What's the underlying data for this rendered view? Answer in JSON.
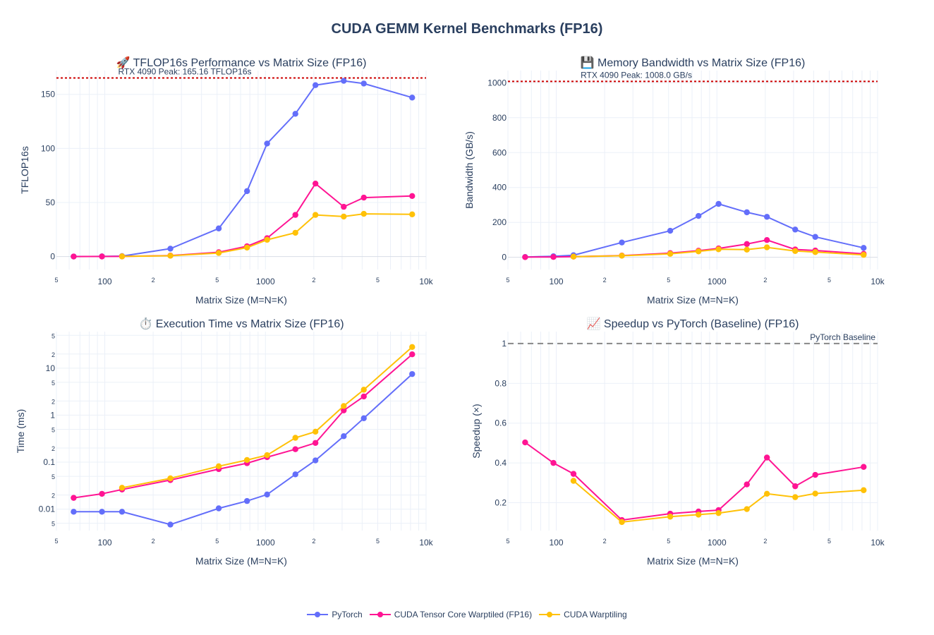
{
  "page_title": "CUDA GEMM Kernel Benchmarks (FP16)",
  "colors": {
    "pytorch": "#636efa",
    "tensor_core": "#ff1493",
    "warptiling": "#ffc107",
    "reference_line": "#cc0000",
    "baseline_line": "#888888",
    "text": "#2a3f5f",
    "grid": "#ebf0f8"
  },
  "legend": [
    {
      "name": "PyTorch",
      "color": "#636efa"
    },
    {
      "name": "CUDA Tensor Core Warptiled (FP16)",
      "color": "#ff1493"
    },
    {
      "name": "CUDA Warptiling",
      "color": "#ffc107"
    }
  ],
  "chart_data": [
    {
      "type": "line",
      "title": "🚀 TFLOP16s Performance vs Matrix Size (FP16)",
      "xlabel": "Matrix Size (M=N=K)",
      "ylabel": "TFLOP16s",
      "xscale": "log",
      "xlim": [
        50,
        10000
      ],
      "ylim": [
        -12,
        172
      ],
      "yticks": [
        0,
        50,
        100,
        150
      ],
      "reference": {
        "value": 165.16,
        "label": "RTX 4090 Peak: 165.16 TFLOP16s"
      },
      "series": [
        {
          "name": "PyTorch",
          "x": [
            64,
            96,
            128,
            256,
            512,
            768,
            1024,
            1536,
            2048,
            3072,
            4096,
            8192
          ],
          "values": [
            0.05,
            0.15,
            0.4,
            7.3,
            26,
            60.5,
            104.5,
            132,
            158.5,
            162.5,
            160,
            147
          ]
        },
        {
          "name": "CUDA Tensor Core Warptiled (FP16)",
          "x": [
            64,
            96,
            128,
            256,
            512,
            768,
            1024,
            1536,
            2048,
            3072,
            4096,
            8192
          ],
          "values": [
            0.03,
            0.07,
            0.15,
            0.9,
            4,
            9.5,
            17,
            38.5,
            67.5,
            46,
            54.5,
            56
          ]
        },
        {
          "name": "CUDA Warptiling",
          "x": [
            128,
            256,
            512,
            768,
            1024,
            1536,
            2048,
            3072,
            4096,
            8192
          ],
          "values": [
            0.15,
            0.75,
            3.3,
            8.3,
            15.5,
            22,
            38.5,
            37,
            39.5,
            39
          ]
        }
      ]
    },
    {
      "type": "line",
      "title": "💾 Memory Bandwidth vs Matrix Size (FP16)",
      "xlabel": "Matrix Size (M=N=K)",
      "ylabel": "Bandwidth (GB/s)",
      "xscale": "log",
      "xlim": [
        50,
        10000
      ],
      "ylim": [
        -70,
        1070
      ],
      "yticks": [
        0,
        200,
        400,
        600,
        800,
        1000
      ],
      "reference": {
        "value": 1008.0,
        "label": "RTX 4090 Peak: 1008.0 GB/s"
      },
      "series": [
        {
          "name": "PyTorch",
          "x": [
            64,
            96,
            128,
            256,
            512,
            768,
            1024,
            1536,
            2048,
            3072,
            4096,
            8192
          ],
          "values": [
            2,
            6,
            12,
            85,
            152,
            237,
            306,
            258,
            232,
            159,
            117,
            54
          ]
        },
        {
          "name": "CUDA Tensor Core Warptiled (FP16)",
          "x": [
            64,
            96,
            128,
            256,
            512,
            768,
            1024,
            1536,
            2048,
            3072,
            4096,
            8192
          ],
          "values": [
            1,
            2,
            4,
            10,
            24,
            38,
            51,
            76,
            99,
            45,
            39,
            20
          ]
        },
        {
          "name": "CUDA Warptiling",
          "x": [
            128,
            256,
            512,
            768,
            1024,
            1536,
            2048,
            3072,
            4096,
            8192
          ],
          "values": [
            4,
            9,
            20,
            34,
            46,
            44,
            57,
            36,
            30,
            14
          ]
        }
      ]
    },
    {
      "type": "line",
      "title": "⏱️ Execution Time vs Matrix Size (FP16)",
      "xlabel": "Matrix Size (M=N=K)",
      "ylabel": "Time (ms)",
      "xscale": "log",
      "yscale": "log",
      "xlim": [
        50,
        10000
      ],
      "ylim": [
        0.0035,
        60
      ],
      "series": [
        {
          "name": "PyTorch",
          "x": [
            64,
            96,
            128,
            256,
            512,
            768,
            1024,
            1536,
            2048,
            3072,
            4096,
            8192
          ],
          "values": [
            0.0088,
            0.0088,
            0.0088,
            0.0047,
            0.0104,
            0.0149,
            0.0205,
            0.055,
            0.109,
            0.357,
            0.86,
            7.5
          ]
        },
        {
          "name": "CUDA Tensor Core Warptiled (FP16)",
          "x": [
            64,
            96,
            128,
            256,
            512,
            768,
            1024,
            1536,
            2048,
            3072,
            4096,
            8192
          ],
          "values": [
            0.0174,
            0.0212,
            0.0262,
            0.0416,
            0.0712,
            0.0951,
            0.1277,
            0.1885,
            0.2567,
            1.263,
            2.5,
            19.7
          ]
        },
        {
          "name": "CUDA Warptiling",
          "x": [
            128,
            256,
            512,
            768,
            1024,
            1536,
            2048,
            3072,
            4096,
            8192
          ],
          "values": [
            0.0285,
            0.0452,
            0.0818,
            0.1112,
            0.1412,
            0.33,
            0.4455,
            1.567,
            3.48,
            28.2
          ]
        }
      ]
    },
    {
      "type": "line",
      "title": "📈 Speedup vs PyTorch (Baseline) (FP16)",
      "xlabel": "Matrix Size (M=N=K)",
      "ylabel": "Speedup (×)",
      "xscale": "log",
      "xlim": [
        50,
        10000
      ],
      "ylim": [
        0.06,
        1.06
      ],
      "yticks": [
        0.2,
        0.4,
        0.6,
        0.8,
        1
      ],
      "baseline": {
        "value": 1,
        "label": "PyTorch Baseline"
      },
      "series": [
        {
          "name": "CUDA Tensor Core Warptiled (FP16)",
          "x": [
            64,
            96,
            128,
            256,
            512,
            768,
            1024,
            1536,
            2048,
            3072,
            4096,
            8192
          ],
          "values": [
            0.503,
            0.4,
            0.345,
            0.113,
            0.145,
            0.156,
            0.163,
            0.292,
            0.427,
            0.283,
            0.34,
            0.38
          ]
        },
        {
          "name": "CUDA Warptiling",
          "x": [
            128,
            256,
            512,
            768,
            1024,
            1536,
            2048,
            3072,
            4096,
            8192
          ],
          "values": [
            0.31,
            0.103,
            0.13,
            0.14,
            0.148,
            0.168,
            0.245,
            0.228,
            0.246,
            0.263
          ]
        }
      ]
    }
  ]
}
